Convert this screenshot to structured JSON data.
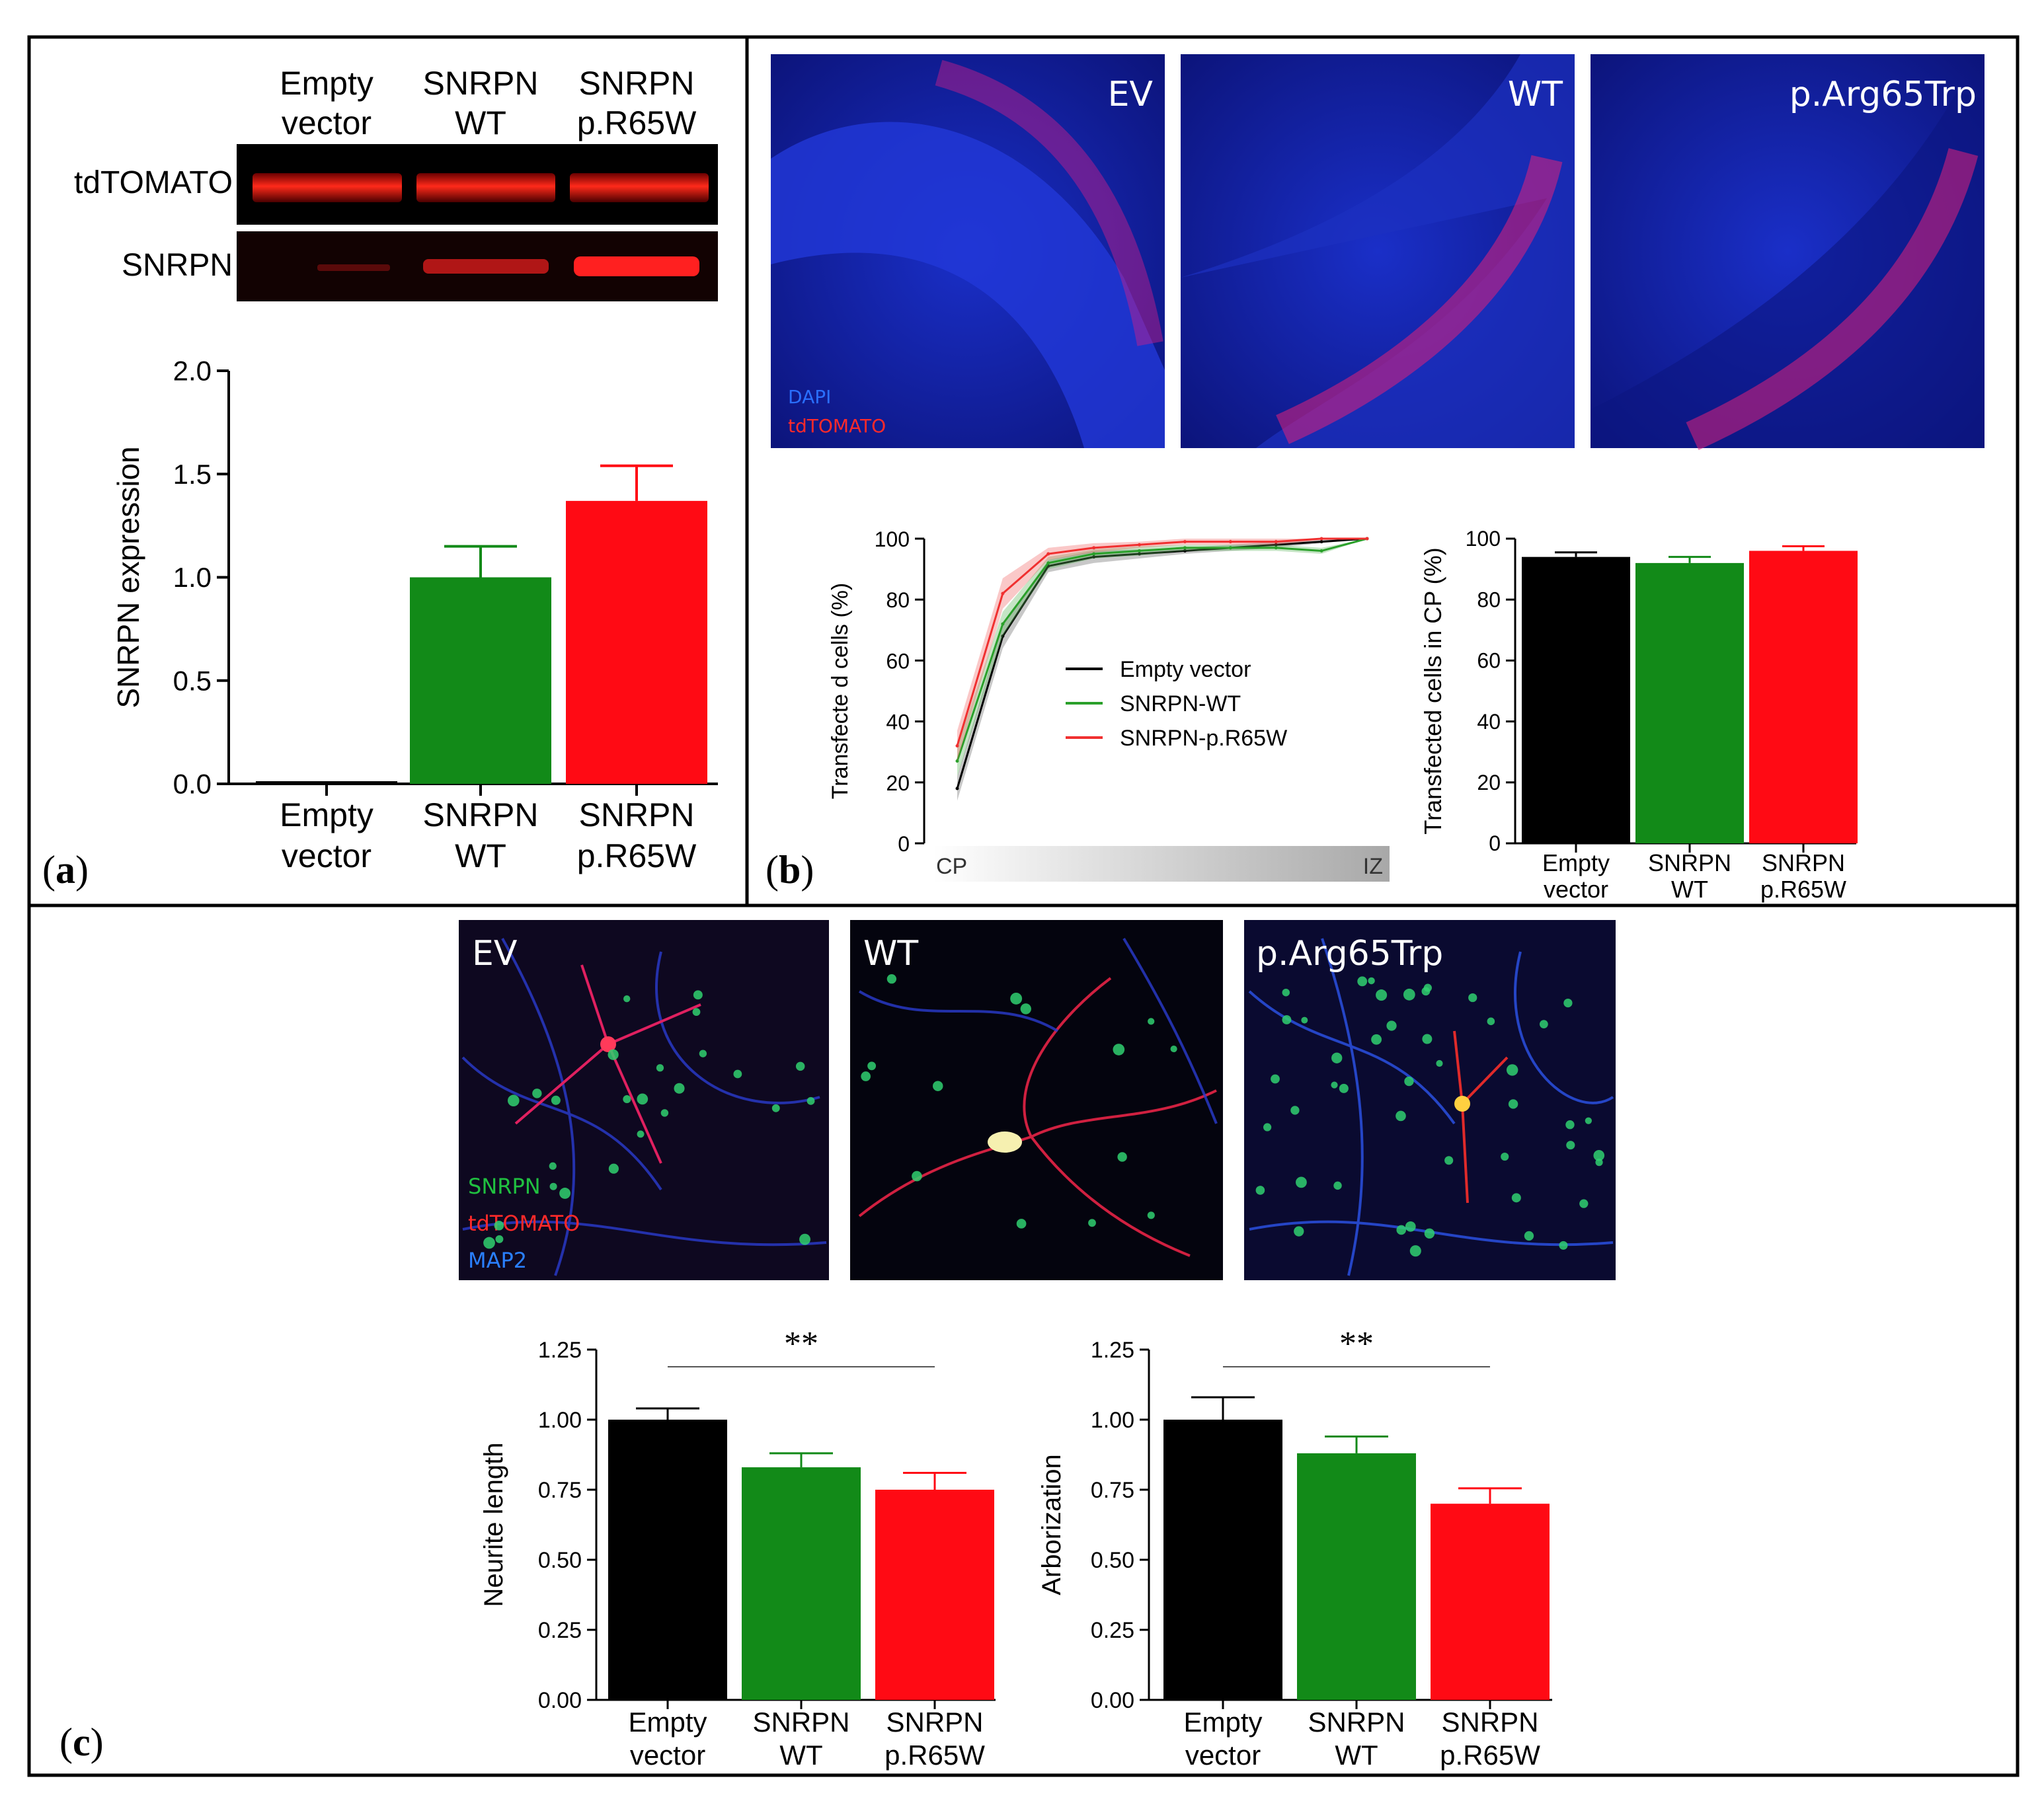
{
  "panels": {
    "a": {
      "label": "(a)",
      "letter": "a",
      "open": "(",
      "close": ")"
    },
    "b": {
      "label": "(b)",
      "letter": "b",
      "open": "(",
      "close": ")"
    },
    "c": {
      "label": "(c)",
      "letter": "c",
      "open": "(",
      "close": ")"
    }
  },
  "blot": {
    "lane_labels": [
      [
        "Empty",
        "vector"
      ],
      [
        "SNRPN",
        "WT"
      ],
      [
        "SNRPN",
        "p.R65W"
      ]
    ],
    "rows": [
      "tdTOMATO",
      "SNRPN"
    ],
    "band_color": "#ff2020"
  },
  "cortex_images": {
    "labels": [
      "EV",
      "WT",
      "p.Arg65Trp"
    ],
    "legend": [
      "DAPI",
      "tdTOMATO"
    ],
    "legend_colors": [
      "#2a6fff",
      "#ff2a2a"
    ]
  },
  "neuron_images": {
    "labels": [
      "EV",
      "WT",
      "p.Arg65Trp"
    ],
    "legend": [
      "SNRPN",
      "tdTOMATO",
      "MAP2"
    ],
    "legend_colors": [
      "#20c040",
      "#ff2a2a",
      "#2a7fff"
    ]
  },
  "colors": {
    "empty": "#000000",
    "wt": "#128a18",
    "mut": "#ff0a14"
  },
  "chart_data": [
    {
      "id": "a",
      "type": "bar",
      "categories": [
        [
          "Empty",
          "vector"
        ],
        [
          "SNRPN",
          "WT"
        ],
        [
          "SNRPN",
          "p.R65W"
        ]
      ],
      "values": [
        0.01,
        1.0,
        1.37
      ],
      "errors": [
        0,
        0.15,
        0.17
      ],
      "ylabel": "SNRPN expression",
      "ylim": [
        0,
        2.0
      ],
      "yticks": [
        "0.0",
        "0.5",
        "1.0",
        "1.5",
        "2.0"
      ],
      "grid": false
    },
    {
      "id": "b-line",
      "type": "line",
      "ylabel": "Transfecte d cells (%)",
      "ylim": [
        0,
        100
      ],
      "yticks": [
        "0",
        "20",
        "40",
        "60",
        "80",
        "100"
      ],
      "x_start_label": "CP",
      "x_end_label": "IZ",
      "x": [
        0,
        1,
        2,
        3,
        4,
        5,
        6,
        7,
        8,
        9
      ],
      "series": [
        {
          "name": "Empty vector",
          "values": [
            18,
            68,
            91,
            94,
            95,
            96,
            97,
            98,
            99,
            100
          ],
          "band": [
            4,
            4,
            2,
            2,
            1.5,
            1,
            1,
            1,
            0.5,
            0
          ]
        },
        {
          "name": "SNRPN-WT",
          "values": [
            27,
            72,
            92,
            95,
            96,
            97,
            97,
            97,
            96,
            100
          ],
          "band": [
            5,
            4,
            2,
            1.5,
            1.5,
            1,
            1,
            1,
            1,
            0
          ]
        },
        {
          "name": "SNRPN-p.R65W",
          "values": [
            32,
            82,
            95,
            97,
            98,
            99,
            99,
            99,
            100,
            100
          ],
          "band": [
            5,
            5,
            2,
            1.5,
            1,
            1,
            1,
            1,
            0.5,
            0
          ]
        }
      ],
      "legend_position": "center-right",
      "grid": false
    },
    {
      "id": "b-bar",
      "type": "bar",
      "categories": [
        [
          "Empty",
          "vector"
        ],
        [
          "SNRPN",
          "WT"
        ],
        [
          "SNRPN",
          "p.R65W"
        ]
      ],
      "values": [
        94,
        92,
        96
      ],
      "errors": [
        1.5,
        2,
        1.5
      ],
      "ylabel": "Transfected cells in CP (%)",
      "ylim": [
        0,
        100
      ],
      "yticks": [
        "0",
        "20",
        "40",
        "60",
        "80",
        "100"
      ],
      "grid": false
    },
    {
      "id": "c-neurite",
      "type": "bar",
      "categories": [
        [
          "Empty",
          "vector"
        ],
        [
          "SNRPN",
          "WT"
        ],
        [
          "SNRPN",
          "p.R65W"
        ]
      ],
      "values": [
        1.0,
        0.83,
        0.75
      ],
      "errors": [
        0.04,
        0.05,
        0.06
      ],
      "ylabel": "Neurite length",
      "ylim": [
        0,
        1.25
      ],
      "yticks": [
        "0.00",
        "0.25",
        "0.50",
        "0.75",
        "1.00",
        "1.25"
      ],
      "significance": "**",
      "grid": false
    },
    {
      "id": "c-arbor",
      "type": "bar",
      "categories": [
        [
          "Empty",
          "vector"
        ],
        [
          "SNRPN",
          "WT"
        ],
        [
          "SNRPN",
          "p.R65W"
        ]
      ],
      "values": [
        1.0,
        0.88,
        0.7
      ],
      "errors": [
        0.08,
        0.06,
        0.055
      ],
      "ylabel": "Arborization",
      "ylim": [
        0,
        1.25
      ],
      "yticks": [
        "0.00",
        "0.25",
        "0.50",
        "0.75",
        "1.00",
        "1.25"
      ],
      "significance": "**",
      "grid": false
    }
  ]
}
